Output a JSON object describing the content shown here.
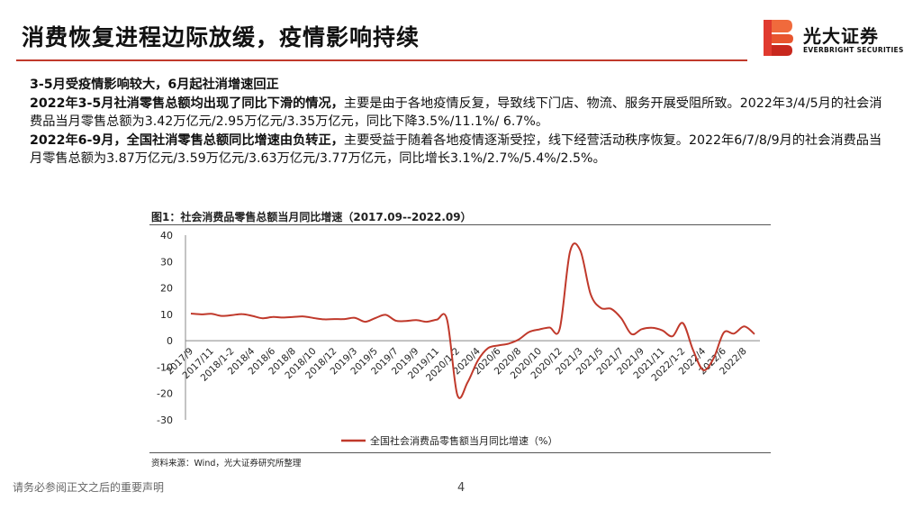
{
  "page": {
    "title": "消费恢复进程边际放缓，疫情影响持续",
    "page_number": "4",
    "disclaimer": "请务必参阅正文之后的重要声明"
  },
  "logo": {
    "name_cn": "光大证券",
    "name_en": "EVERBRIGHT SECURITIES"
  },
  "body": {
    "p1": "3-5月受疫情影响较大，6月起社消增速回正",
    "p2_lead": "2022年3-5月社消零售总额均出现了同比下滑的情况，",
    "p2_rest": "主要是由于各地疫情反复，导致线下门店、物流、服务开展受阻所致。2022年3/4/5月的社会消费品当月零售总额为3.42万亿元/2.95万亿元/3.35万亿元，同比下降3.5%/11.1%/ 6.7%。",
    "p3_lead": "2022年6-9月，全国社消零售总额同比增速由负转正，",
    "p3_rest": "主要受益于随着各地疫情逐渐受控，线下经营活动秩序恢复。2022年6/7/8/9月的社会消费品当月零售总额为3.87万亿元/3.59万亿元/3.63万亿元/3.77万亿元，同比增长3.1%/2.7%/5.4%/2.5%。"
  },
  "figure": {
    "title": "图1：社会消费品零售总额当月同比增速（2017.09--2022.09）",
    "source": "资料来源：Wind，光大证券研究所整理"
  },
  "colors": {
    "accent": "#c0392b",
    "series": "#c0392b"
  },
  "chart_data": {
    "type": "line",
    "ylim": [
      -30,
      40
    ],
    "yticks": [
      -30,
      -20,
      -10,
      0,
      10,
      20,
      30,
      40
    ],
    "x_tick_labels": [
      "2017/9",
      "2017/11",
      "2018/1-2",
      "2018/4",
      "2018/6",
      "2018/8",
      "2018/10",
      "2018/12",
      "2019/3",
      "2019/5",
      "2019/7",
      "2019/9",
      "2019/11",
      "2020/1-2",
      "2020/4",
      "2020/6",
      "2020/8",
      "2020/10",
      "2020/12",
      "2021/3",
      "2021/5",
      "2021/7",
      "2021/9",
      "2021/11",
      "2022/1-2",
      "2022/4",
      "2022/6",
      "2022/8"
    ],
    "x": [
      "2017/9",
      "2017/10",
      "2017/11",
      "2017/12",
      "2018/1-2",
      "2018/3",
      "2018/4",
      "2018/5",
      "2018/6",
      "2018/7",
      "2018/8",
      "2018/9",
      "2018/10",
      "2018/11",
      "2018/12",
      "2019/1-2",
      "2019/3",
      "2019/4",
      "2019/5",
      "2019/6",
      "2019/7",
      "2019/8",
      "2019/9",
      "2019/10",
      "2019/11",
      "2019/12",
      "2020/1-2",
      "2020/3",
      "2020/4",
      "2020/5",
      "2020/6",
      "2020/7",
      "2020/8",
      "2020/9",
      "2020/10",
      "2020/11",
      "2020/12",
      "2021/1-2",
      "2021/3",
      "2021/4",
      "2021/5",
      "2021/6",
      "2021/7",
      "2021/8",
      "2021/9",
      "2021/10",
      "2021/11",
      "2021/12",
      "2022/1-2",
      "2022/3",
      "2022/4",
      "2022/5",
      "2022/6",
      "2022/7",
      "2022/8",
      "2022/9"
    ],
    "series": [
      {
        "name": "全国社会消费品零售额当月同比增速（%）",
        "values": [
          10.3,
          10.0,
          10.2,
          9.4,
          9.7,
          10.1,
          9.4,
          8.5,
          9.0,
          8.8,
          9.0,
          9.2,
          8.6,
          8.1,
          8.2,
          8.2,
          8.7,
          7.2,
          8.6,
          9.8,
          7.6,
          7.5,
          7.8,
          7.2,
          8.0,
          8.0,
          -20.5,
          -15.8,
          -7.5,
          -2.8,
          -1.8,
          -1.1,
          0.5,
          3.3,
          4.3,
          5.0,
          4.6,
          33.8,
          34.2,
          17.7,
          12.4,
          12.1,
          8.5,
          2.5,
          4.4,
          4.9,
          3.9,
          1.7,
          6.7,
          -3.5,
          -11.1,
          -6.7,
          3.1,
          2.7,
          5.4,
          2.5
        ]
      }
    ]
  }
}
